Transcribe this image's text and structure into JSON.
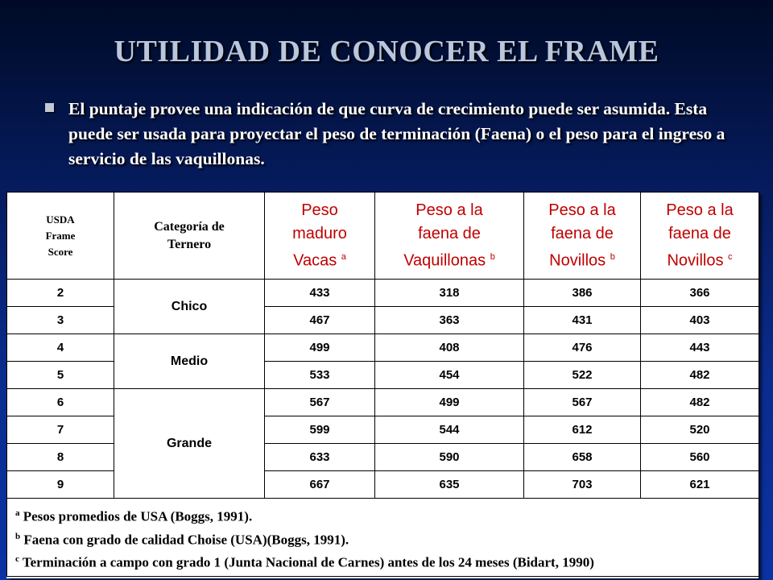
{
  "title": "UTILIDAD DE CONOCER EL FRAME",
  "bullet": "El puntaje provee una indicación de que curva de crecimiento puede ser asumida. Esta puede ser usada para proyectar el peso de terminación (Faena) o el peso para el ingreso a servicio de las vaquillonas.",
  "table": {
    "headers": {
      "usda": [
        "USDA",
        "Frame",
        "Score"
      ],
      "categoria": [
        "Categoría de",
        "Ternero"
      ],
      "peso_maduro": {
        "lines": [
          "Peso",
          "maduro",
          "Vacas"
        ],
        "sup": "a"
      },
      "faena_vaquillonas": {
        "lines": [
          "Peso a la",
          "faena de",
          "Vaquillonas"
        ],
        "sup": "b"
      },
      "faena_novillos_b": {
        "lines": [
          "Peso a la",
          "faena de",
          "Novillos"
        ],
        "sup": "b"
      },
      "faena_novillos_c": {
        "lines": [
          "Peso a la",
          "faena de",
          "Novillos"
        ],
        "sup": "c"
      }
    },
    "categories": [
      "Chico",
      "Medio",
      "Grande"
    ],
    "rows": [
      [
        "2",
        "433",
        "318",
        "386",
        "366"
      ],
      [
        "3",
        "467",
        "363",
        "431",
        "403"
      ],
      [
        "4",
        "499",
        "408",
        "476",
        "443"
      ],
      [
        "5",
        "533",
        "454",
        "522",
        "482"
      ],
      [
        "6",
        "567",
        "499",
        "567",
        "482"
      ],
      [
        "7",
        "599",
        "544",
        "612",
        "520"
      ],
      [
        "8",
        "633",
        "590",
        "658",
        "560"
      ],
      [
        "9",
        "667",
        "635",
        "703",
        "621"
      ]
    ],
    "footnotes": [
      {
        "sup": "a",
        "text": " Pesos promedios de USA (Boggs, 1991)."
      },
      {
        "sup": "b",
        "text": "  Faena con grado de calidad Choise (USA)(Boggs, 1991)."
      },
      {
        "sup": "c",
        "text": " Terminación a campo con grado 1 (Junta Nacional de Carnes) antes de los 24 meses  (Bidart, 1990)"
      }
    ]
  }
}
